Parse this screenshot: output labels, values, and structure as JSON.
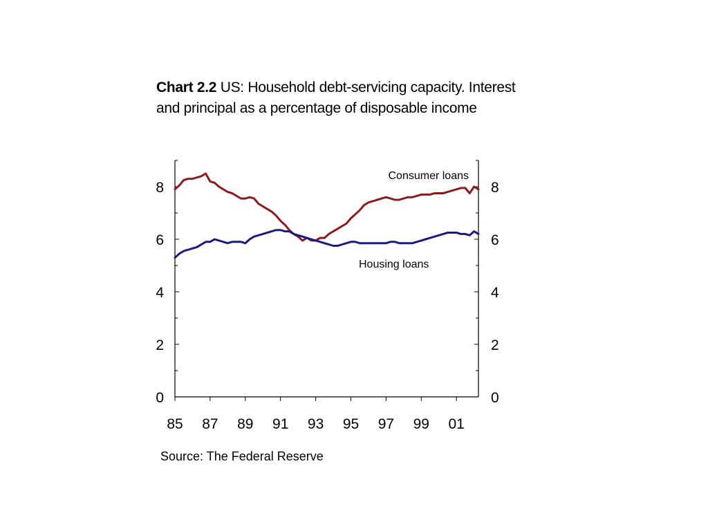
{
  "title": {
    "prefix": "Chart 2.2",
    "text": " US: Household debt-servicing capacity. Interest and principal as a percentage of disposable income"
  },
  "source": "Source: The Federal Reserve",
  "colors": {
    "consumer": "#8b1a1a",
    "housing": "#1a1a80",
    "axis": "#000000"
  },
  "chart_data": {
    "type": "line",
    "x_tick_labels": [
      "85",
      "87",
      "89",
      "91",
      "93",
      "95",
      "97",
      "99",
      "01"
    ],
    "x_tick_years": [
      1985,
      1987,
      1989,
      1991,
      1993,
      1995,
      1997,
      1999,
      2001
    ],
    "xlim": [
      1985,
      2002.25
    ],
    "ylim": [
      0,
      9
    ],
    "y_ticks": [
      0,
      2,
      4,
      6,
      8
    ],
    "y_tick_labels": [
      "0",
      "2",
      "4",
      "6",
      "8"
    ],
    "annotations": [
      "Consumer loans",
      "Housing loans"
    ],
    "series": [
      {
        "name": "Consumer loans",
        "color": "#8b1a1a",
        "x": [
          1985.0,
          1985.25,
          1985.5,
          1985.75,
          1986.0,
          1986.25,
          1986.5,
          1986.75,
          1987.0,
          1987.25,
          1987.5,
          1987.75,
          1988.0,
          1988.25,
          1988.5,
          1988.75,
          1989.0,
          1989.25,
          1989.5,
          1989.75,
          1990.0,
          1990.25,
          1990.5,
          1990.75,
          1991.0,
          1991.25,
          1991.5,
          1991.75,
          1992.0,
          1992.25,
          1992.5,
          1992.75,
          1993.0,
          1993.25,
          1993.5,
          1993.75,
          1994.0,
          1994.25,
          1994.5,
          1994.75,
          1995.0,
          1995.25,
          1995.5,
          1995.75,
          1996.0,
          1996.25,
          1996.5,
          1996.75,
          1997.0,
          1997.25,
          1997.5,
          1997.75,
          1998.0,
          1998.25,
          1998.5,
          1998.75,
          1999.0,
          1999.25,
          1999.5,
          1999.75,
          2000.0,
          2000.25,
          2000.5,
          2000.75,
          2001.0,
          2001.25,
          2001.5,
          2001.75,
          2002.0,
          2002.25
        ],
        "y": [
          7.9,
          8.05,
          8.25,
          8.3,
          8.3,
          8.35,
          8.4,
          8.5,
          8.2,
          8.15,
          8.0,
          7.9,
          7.8,
          7.75,
          7.65,
          7.55,
          7.55,
          7.6,
          7.55,
          7.35,
          7.25,
          7.15,
          7.05,
          6.9,
          6.7,
          6.55,
          6.35,
          6.2,
          6.1,
          5.95,
          6.05,
          5.95,
          5.95,
          6.05,
          6.05,
          6.2,
          6.3,
          6.4,
          6.5,
          6.6,
          6.8,
          6.95,
          7.1,
          7.3,
          7.4,
          7.45,
          7.5,
          7.55,
          7.6,
          7.55,
          7.5,
          7.5,
          7.55,
          7.6,
          7.6,
          7.65,
          7.7,
          7.7,
          7.7,
          7.75,
          7.75,
          7.75,
          7.8,
          7.85,
          7.9,
          7.95,
          7.95,
          7.75,
          8.0,
          7.9
        ]
      },
      {
        "name": "Housing loans",
        "color": "#1a1a80",
        "x": [
          1985.0,
          1985.25,
          1985.5,
          1985.75,
          1986.0,
          1986.25,
          1986.5,
          1986.75,
          1987.0,
          1987.25,
          1987.5,
          1987.75,
          1988.0,
          1988.25,
          1988.5,
          1988.75,
          1989.0,
          1989.25,
          1989.5,
          1989.75,
          1990.0,
          1990.25,
          1990.5,
          1990.75,
          1991.0,
          1991.25,
          1991.5,
          1991.75,
          1992.0,
          1992.25,
          1992.5,
          1992.75,
          1993.0,
          1993.25,
          1993.5,
          1993.75,
          1994.0,
          1994.25,
          1994.5,
          1994.75,
          1995.0,
          1995.25,
          1995.5,
          1995.75,
          1996.0,
          1996.25,
          1996.5,
          1996.75,
          1997.0,
          1997.25,
          1997.5,
          1997.75,
          1998.0,
          1998.25,
          1998.5,
          1998.75,
          1999.0,
          1999.25,
          1999.5,
          1999.75,
          2000.0,
          2000.25,
          2000.5,
          2000.75,
          2001.0,
          2001.25,
          2001.5,
          2001.75,
          2002.0,
          2002.25
        ],
        "y": [
          5.3,
          5.45,
          5.55,
          5.6,
          5.65,
          5.7,
          5.8,
          5.9,
          5.9,
          6.0,
          5.95,
          5.9,
          5.85,
          5.9,
          5.9,
          5.9,
          5.85,
          6.0,
          6.1,
          6.15,
          6.2,
          6.25,
          6.3,
          6.35,
          6.35,
          6.3,
          6.3,
          6.2,
          6.15,
          6.1,
          6.05,
          6.0,
          5.95,
          5.9,
          5.85,
          5.8,
          5.75,
          5.75,
          5.8,
          5.85,
          5.9,
          5.9,
          5.85,
          5.85,
          5.85,
          5.85,
          5.85,
          5.85,
          5.85,
          5.9,
          5.9,
          5.85,
          5.85,
          5.85,
          5.85,
          5.9,
          5.95,
          6.0,
          6.05,
          6.1,
          6.15,
          6.2,
          6.25,
          6.25,
          6.25,
          6.2,
          6.2,
          6.15,
          6.3,
          6.2
        ]
      }
    ]
  }
}
